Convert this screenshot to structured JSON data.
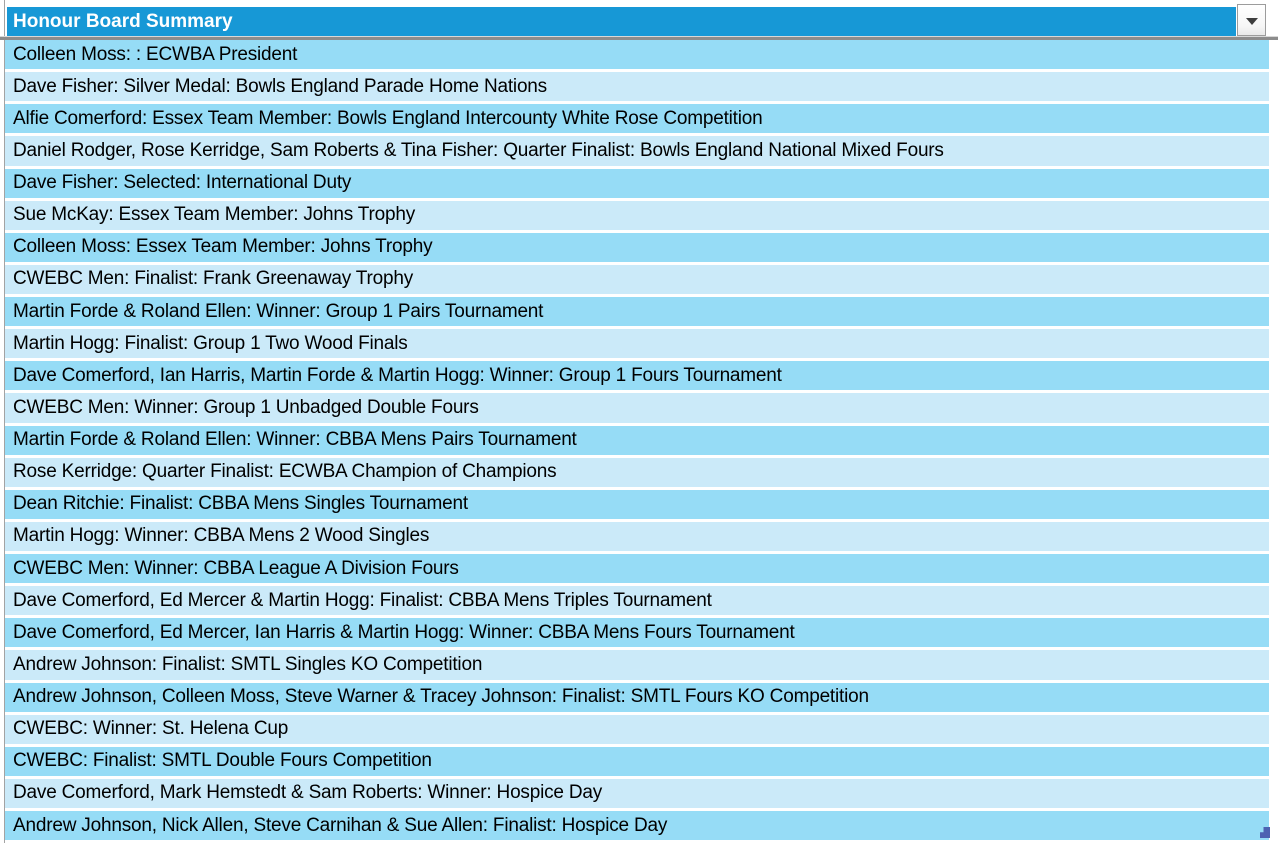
{
  "header": {
    "title": "Honour Board Summary",
    "dropdown_icon": "chevron-down"
  },
  "rows": [
    "Colleen Moss: : ECWBA President",
    "Dave Fisher: Silver Medal: Bowls England Parade Home Nations",
    "Alfie Comerford: Essex Team Member: Bowls England Intercounty White Rose Competition",
    "Daniel Rodger, Rose Kerridge, Sam Roberts & Tina Fisher: Quarter Finalist: Bowls England National Mixed Fours",
    "Dave Fisher: Selected: International Duty",
    "Sue McKay: Essex Team Member: Johns Trophy",
    "Colleen Moss: Essex Team Member: Johns Trophy",
    "CWEBC Men: Finalist: Frank Greenaway Trophy",
    "Martin Forde & Roland Ellen: Winner: Group 1 Pairs Tournament",
    "Martin Hogg: Finalist: Group 1 Two Wood Finals",
    "Dave Comerford, Ian Harris, Martin Forde & Martin Hogg: Winner: Group 1 Fours Tournament",
    "CWEBC Men: Winner: Group 1 Unbadged Double Fours",
    "Martin Forde & Roland Ellen: Winner: CBBA Mens Pairs Tournament",
    "Rose Kerridge: Quarter Finalist: ECWBA Champion of Champions",
    "Dean Ritchie: Finalist: CBBA Mens Singles Tournament",
    "Martin Hogg: Winner: CBBA Mens 2 Wood Singles",
    "CWEBC Men: Winner: CBBA League A Division Fours",
    "Dave Comerford, Ed Mercer & Martin Hogg: Finalist: CBBA Mens Triples Tournament",
    "Dave Comerford, Ed Mercer, Ian Harris & Martin Hogg: Winner: CBBA Mens Fours Tournament",
    "Andrew Johnson: Finalist: SMTL Singles KO Competition",
    "Andrew Johnson, Colleen Moss, Steve Warner & Tracey Johnson: Finalist: SMTL Fours KO Competition",
    "CWEBC: Winner: St. Helena Cup",
    "CWEBC: Finalist: SMTL Double Fours Competition",
    "Dave Comerford, Mark Hemstedt & Sam Roberts: Winner: Hospice Day",
    "Andrew Johnson, Nick Allen, Steve Carnihan & Sue Allen: Finalist: Hospice Day"
  ],
  "colors": {
    "header_bg": "#1798d6",
    "row_alt_a": "#96dcf6",
    "row_alt_b": "#cbeaf9",
    "grid_line": "#8c8c8c",
    "selection_handle": "#4d62b2"
  }
}
